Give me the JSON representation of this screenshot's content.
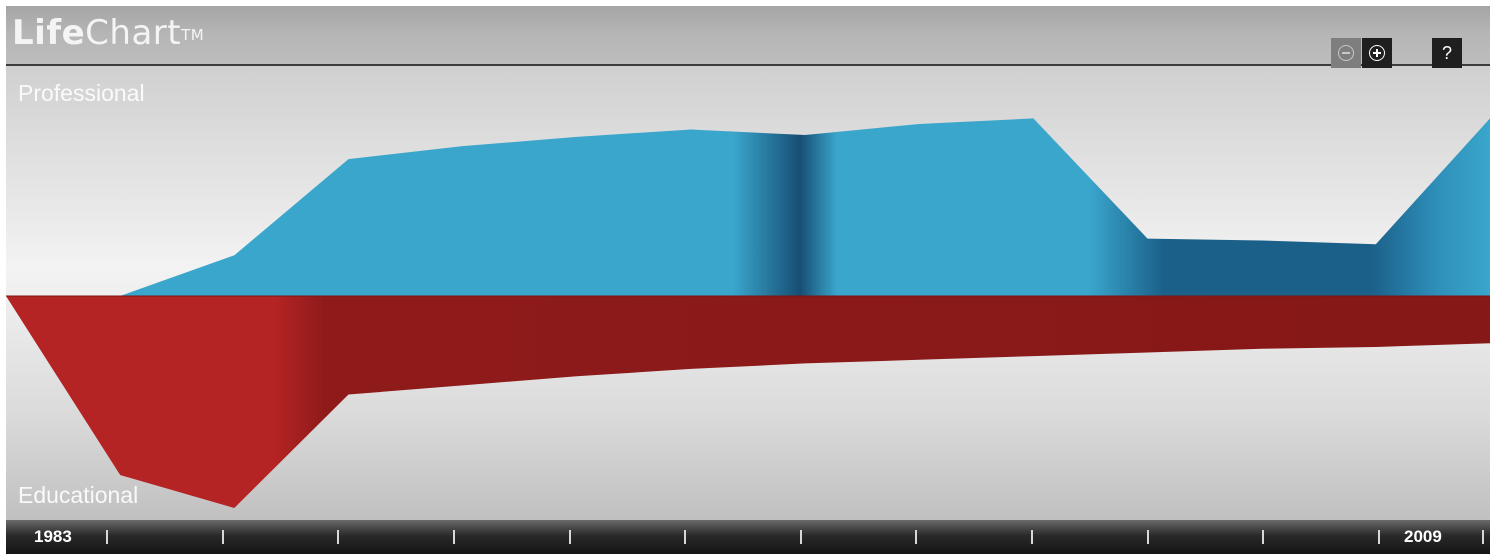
{
  "header": {
    "logo_bold": "Life",
    "logo_light": "Chart",
    "logo_mark": "TM",
    "zoom_out_icon": "zoom-out-icon",
    "zoom_in_icon": "zoom-in-icon",
    "help_label": "?"
  },
  "labels": {
    "professional": "Professional",
    "educational": "Educational"
  },
  "timeline": {
    "start_label": "1983",
    "end_label": "2009",
    "tick_count": 13
  },
  "colors": {
    "professional": "#3aa6cc",
    "professional_dark": "#1b6089",
    "educational": "#b52424",
    "educational_dark": "#871818"
  },
  "chart_data": {
    "type": "area",
    "x": [
      1983,
      1985,
      1987,
      1989,
      1991,
      1993,
      1995,
      1997,
      1999,
      2001,
      2003,
      2005,
      2007,
      2009
    ],
    "xlim": [
      1983,
      2009
    ],
    "series": [
      {
        "name": "Professional",
        "values": [
          0,
          0,
          0.22,
          0.74,
          0.81,
          0.86,
          0.9,
          0.87,
          0.93,
          0.96,
          0.31,
          0.3,
          0.28,
          0.96
        ]
      },
      {
        "name": "Educational",
        "values": [
          0,
          -0.82,
          -1.0,
          -0.38,
          -0.33,
          -0.28,
          -0.24,
          -0.21,
          -0.19,
          -0.17,
          -0.15,
          -0.13,
          -0.12,
          -0.1
        ]
      }
    ],
    "ylim": [
      -1,
      1
    ],
    "grid": false
  }
}
